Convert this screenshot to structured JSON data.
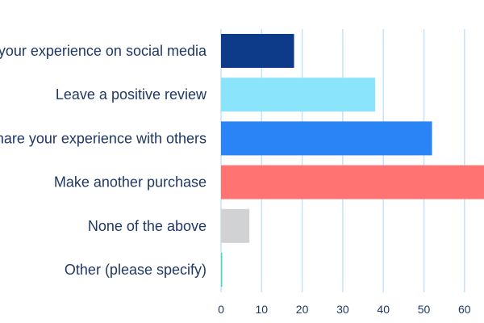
{
  "chart_data": {
    "type": "bar",
    "orientation": "horizontal",
    "categories": [
      "Share your experience on social media",
      "Leave a positive review",
      "Share your experience with others",
      "Make another purchase",
      "None of the above",
      "Other (please specify)"
    ],
    "values": [
      18,
      38,
      52,
      66,
      7,
      0.3
    ],
    "colors": [
      "#0d3b8a",
      "#8ae4fb",
      "#2b84f5",
      "#ff7373",
      "#d0d2d3",
      "#3fdcc8"
    ],
    "xticks": [
      0,
      10,
      20,
      30,
      40,
      50,
      60
    ],
    "xlim": [
      0,
      65
    ],
    "grid": true,
    "grid_color": "#c6e2f7",
    "title": "",
    "xlabel": "",
    "ylabel": ""
  }
}
